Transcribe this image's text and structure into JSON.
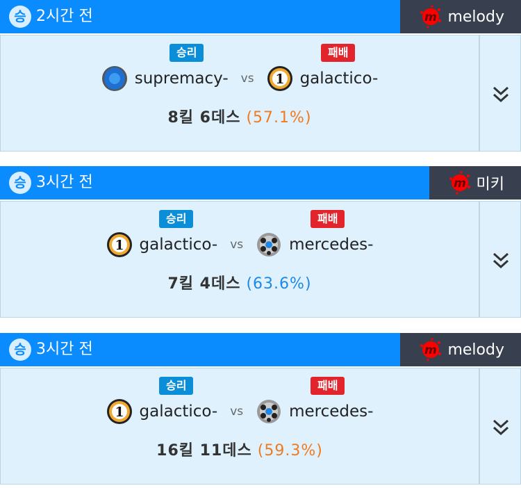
{
  "colors": {
    "header": "#0a8cff",
    "user_bg": "#383f4e",
    "win": "#0a8ed8",
    "lose": "#e2252c",
    "pct_orange": "#f07a1e",
    "pct_blue": "#1e88e5"
  },
  "matches": [
    {
      "result": "승",
      "time": "2시간 전",
      "user": "melody",
      "win_label": "승리",
      "lose_label": "패배",
      "team1": "supremacy-",
      "vs": "vs",
      "team2": "galactico-",
      "team1_logo": "blue-crest",
      "team2_logo": "number-one-badge",
      "kills_deaths": "8킬 6데스",
      "pct": "(57.1%)",
      "pct_color": "#f07a1e"
    },
    {
      "result": "승",
      "time": "3시간 전",
      "user": "미키",
      "win_label": "승리",
      "lose_label": "패배",
      "team1": "galactico-",
      "vs": "vs",
      "team2": "mercedes-",
      "team1_logo": "number-one-badge",
      "team2_logo": "soccer-ball",
      "kills_deaths": "7킬 4데스",
      "pct": "(63.6%)",
      "pct_color": "#1e88e5"
    },
    {
      "result": "승",
      "time": "3시간 전",
      "user": "melody",
      "win_label": "승리",
      "lose_label": "패배",
      "team1": "galactico-",
      "vs": "vs",
      "team2": "mercedes-",
      "team1_logo": "number-one-badge",
      "team2_logo": "soccer-ball",
      "kills_deaths": "16킬 11데스",
      "pct": "(59.3%)",
      "pct_color": "#f07a1e"
    }
  ]
}
